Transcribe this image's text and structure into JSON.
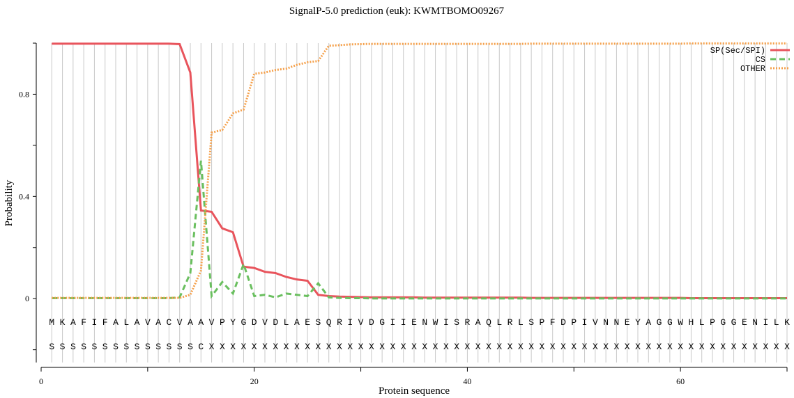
{
  "chart_data": {
    "type": "line",
    "title": "SignalP-5.0 prediction (euk):  KWMTBOMO09267",
    "x_label": "Protein sequence",
    "y_label": "Probability",
    "x": [
      1,
      2,
      3,
      4,
      5,
      6,
      7,
      8,
      9,
      10,
      11,
      12,
      13,
      14,
      15,
      16,
      17,
      18,
      19,
      20,
      21,
      22,
      23,
      24,
      25,
      26,
      27,
      28,
      29,
      30,
      31,
      32,
      33,
      34,
      35,
      36,
      37,
      38,
      39,
      40,
      41,
      42,
      43,
      44,
      45,
      46,
      47,
      48,
      49,
      50,
      51,
      52,
      53,
      54,
      55,
      56,
      57,
      58,
      59,
      60,
      61,
      62,
      63,
      64,
      65,
      66,
      67,
      68,
      69,
      70
    ],
    "sequence": [
      "M",
      "K",
      "A",
      "F",
      "I",
      "F",
      "A",
      "L",
      "A",
      "V",
      "A",
      "C",
      "V",
      "A",
      "A",
      "V",
      "P",
      "Y",
      "G",
      "D",
      "V",
      "D",
      "L",
      "A",
      "E",
      "S",
      "Q",
      "R",
      "I",
      "V",
      "D",
      "G",
      "I",
      "I",
      "E",
      "N",
      "W",
      "I",
      "S",
      "R",
      "A",
      "Q",
      "L",
      "R",
      "L",
      "S",
      "P",
      "F",
      "D",
      "P",
      "I",
      "V",
      "N",
      "N",
      "E",
      "Y",
      "A",
      "G",
      "G",
      "W",
      "H",
      "L",
      "P",
      "G",
      "G",
      "E",
      "N",
      "I",
      "L",
      "K"
    ],
    "labels": [
      "S",
      "S",
      "S",
      "S",
      "S",
      "S",
      "S",
      "S",
      "S",
      "S",
      "S",
      "S",
      "S",
      "S",
      "C",
      "X",
      "X",
      "X",
      "X",
      "X",
      "X",
      "X",
      "X",
      "X",
      "X",
      "X",
      "X",
      "X",
      "X",
      "X",
      "X",
      "X",
      "X",
      "X",
      "X",
      "X",
      "X",
      "X",
      "X",
      "X",
      "X",
      "X",
      "X",
      "X",
      "X",
      "X",
      "X",
      "X",
      "X",
      "X",
      "X",
      "X",
      "X",
      "X",
      "X",
      "X",
      "X",
      "X",
      "X",
      "X",
      "X",
      "X",
      "X",
      "X",
      "X",
      "X",
      "X",
      "X",
      "X",
      "X"
    ],
    "series": [
      {
        "name": "SP(Sec/SPI)",
        "color": "#e8545c",
        "dash": "solid",
        "values": [
          0.998,
          0.998,
          0.998,
          0.998,
          0.998,
          0.998,
          0.998,
          0.998,
          0.998,
          0.998,
          0.998,
          0.998,
          0.996,
          0.885,
          0.345,
          0.34,
          0.275,
          0.26,
          0.125,
          0.12,
          0.105,
          0.1,
          0.085,
          0.075,
          0.07,
          0.015,
          0.01,
          0.008,
          0.007,
          0.006,
          0.005,
          0.005,
          0.005,
          0.005,
          0.005,
          0.004,
          0.004,
          0.004,
          0.004,
          0.004,
          0.004,
          0.004,
          0.004,
          0.004,
          0.004,
          0.003,
          0.003,
          0.003,
          0.003,
          0.003,
          0.003,
          0.003,
          0.003,
          0.003,
          0.003,
          0.003,
          0.003,
          0.003,
          0.003,
          0.003,
          0.002,
          0.002,
          0.002,
          0.002,
          0.002,
          0.002,
          0.002,
          0.002,
          0.002,
          0.002
        ]
      },
      {
        "name": "CS",
        "color": "#6abf5f",
        "dash": "dashed",
        "values": [
          0.002,
          0.002,
          0.002,
          0.002,
          0.002,
          0.002,
          0.002,
          0.002,
          0.002,
          0.002,
          0.002,
          0.002,
          0.005,
          0.1,
          0.54,
          0.01,
          0.065,
          0.02,
          0.135,
          0.01,
          0.015,
          0.005,
          0.02,
          0.015,
          0.01,
          0.06,
          0.005,
          0.003,
          0.002,
          0.002,
          0.001,
          0.001,
          0.001,
          0.001,
          0.001,
          0.001,
          0.001,
          0.001,
          0.001,
          0.001,
          0.001,
          0.001,
          0.001,
          0.001,
          0.001,
          0.001,
          0.001,
          0.001,
          0.001,
          0.001,
          0.001,
          0.001,
          0.001,
          0.001,
          0.001,
          0.001,
          0.001,
          0.001,
          0.001,
          0.001,
          0.001,
          0.001,
          0.001,
          0.001,
          0.001,
          0.001,
          0.001,
          0.001,
          0.001,
          0.001
        ]
      },
      {
        "name": "OTHER",
        "color": "#f5a04a",
        "dash": "dotted",
        "values": [
          0.003,
          0.003,
          0.003,
          0.003,
          0.003,
          0.003,
          0.003,
          0.003,
          0.003,
          0.003,
          0.003,
          0.003,
          0.003,
          0.015,
          0.11,
          0.65,
          0.66,
          0.725,
          0.74,
          0.88,
          0.885,
          0.895,
          0.9,
          0.915,
          0.925,
          0.93,
          0.99,
          0.992,
          0.995,
          0.996,
          0.997,
          0.997,
          0.997,
          0.997,
          0.997,
          0.997,
          0.997,
          0.997,
          0.997,
          0.997,
          0.997,
          0.997,
          0.997,
          0.997,
          0.997,
          0.998,
          0.998,
          0.998,
          0.998,
          0.998,
          0.998,
          0.998,
          0.998,
          0.998,
          0.998,
          0.998,
          0.998,
          0.998,
          0.998,
          0.998,
          0.999,
          0.999,
          0.999,
          0.999,
          0.999,
          0.999,
          0.999,
          0.999,
          0.999,
          0.999
        ]
      }
    ],
    "xlim": [
      0,
      70
    ],
    "xticks": [
      0,
      20,
      40,
      60
    ],
    "x_minor_ticks": [
      10,
      30,
      50,
      70
    ],
    "ylim": [
      -0.25,
      1.0
    ],
    "yticks": [
      0,
      0.4,
      0.8
    ],
    "y_minor_ticks": [
      -0.2,
      0.2,
      0.6,
      1.0
    ],
    "grid": true,
    "legend": "upper right"
  }
}
